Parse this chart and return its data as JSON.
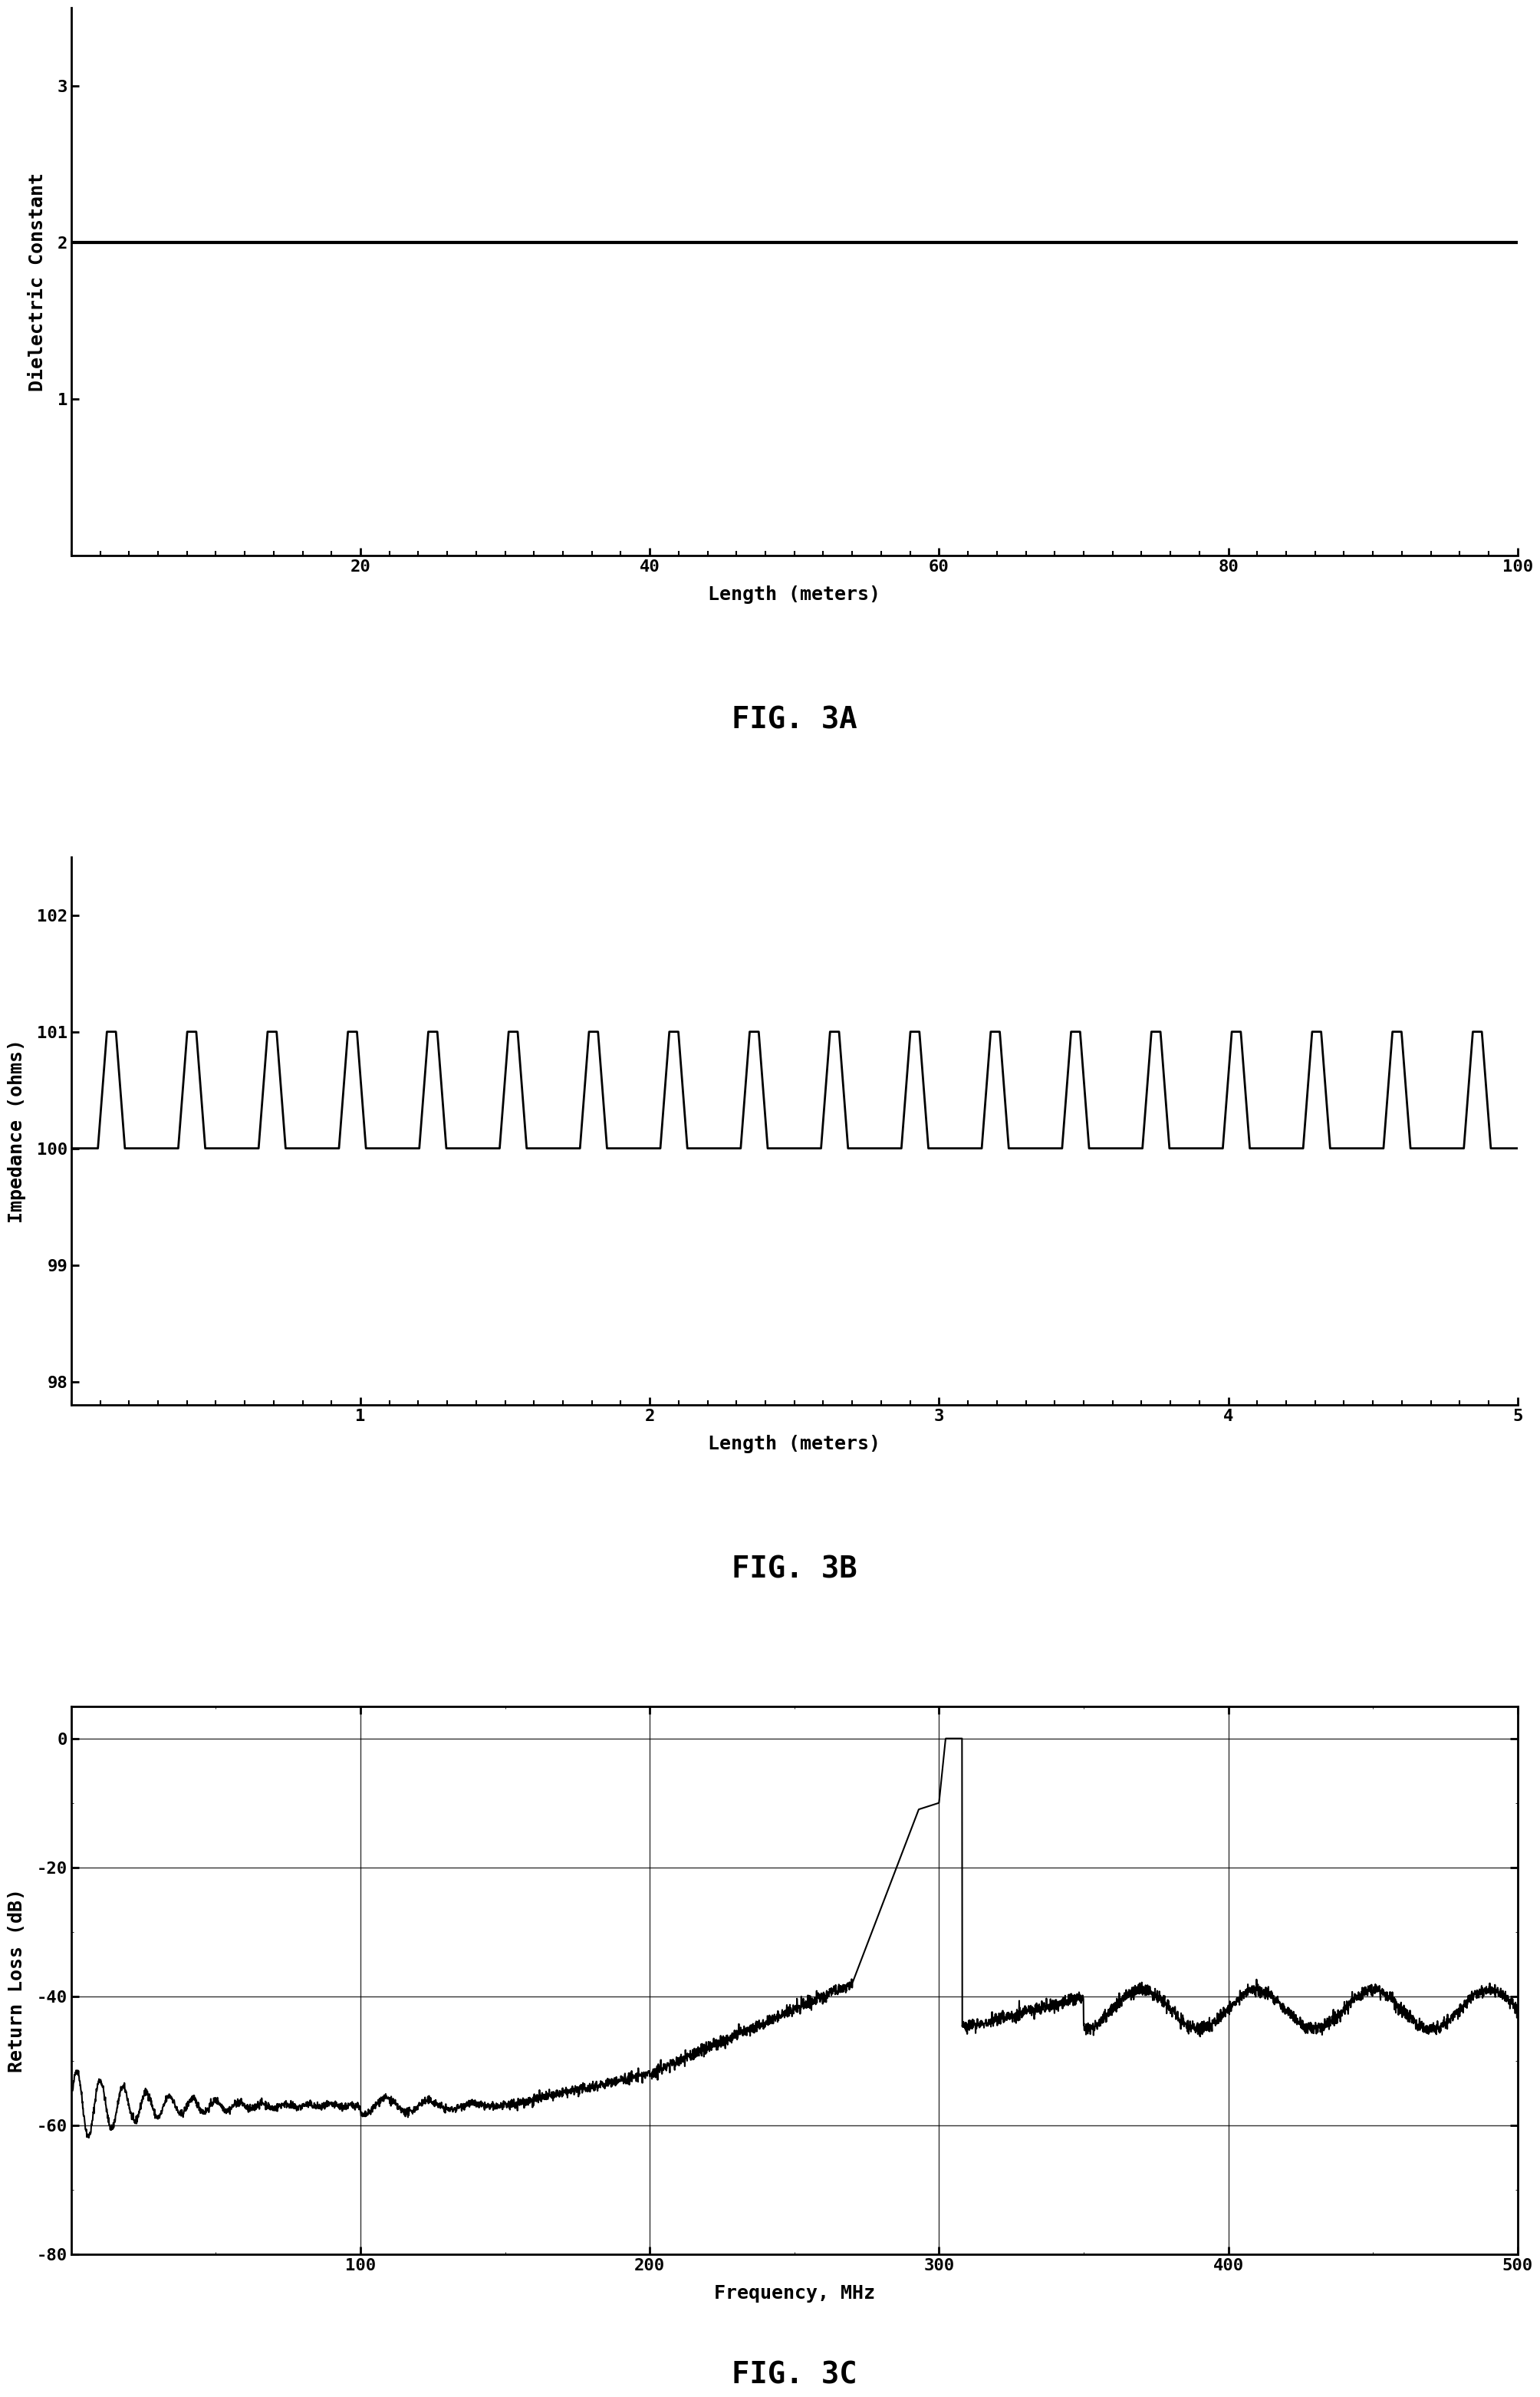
{
  "fig3a": {
    "xlabel": "Length (meters)",
    "ylabel": "Dielectric Constant",
    "title": "FIG. 3A",
    "xlim": [
      0,
      100
    ],
    "ylim": [
      0,
      3.5
    ],
    "yticks": [
      1,
      2,
      3
    ],
    "xticks": [
      20,
      40,
      60,
      80,
      100
    ],
    "line_value": 2.0,
    "line_color": "#000000"
  },
  "fig3b": {
    "xlabel": "Length (meters)",
    "ylabel": "Impedance (ohms)",
    "title": "FIG. 3B",
    "xlim": [
      0,
      5
    ],
    "ylim": [
      97.8,
      102.5
    ],
    "yticks": [
      98,
      99,
      100,
      101,
      102
    ],
    "xticks": [
      1,
      2,
      3,
      4,
      5
    ],
    "base_impedance": 100.0,
    "peak_impedance": 101.0,
    "num_pulses": 18,
    "line_color": "#000000"
  },
  "fig3c": {
    "xlabel": "Frequency, MHz",
    "ylabel": "Return Loss (dB)",
    "title": "FIG. 3C",
    "xlim": [
      0,
      500
    ],
    "ylim": [
      -80,
      5
    ],
    "yticks": [
      -80,
      -60,
      -40,
      -20,
      0
    ],
    "xticks": [
      100,
      200,
      300,
      400,
      500
    ],
    "grid": true,
    "line_color": "#000000"
  },
  "background_color": "#ffffff",
  "text_color": "#000000",
  "font_size_label": 18,
  "font_size_tick": 16,
  "font_size_fig_label": 28
}
